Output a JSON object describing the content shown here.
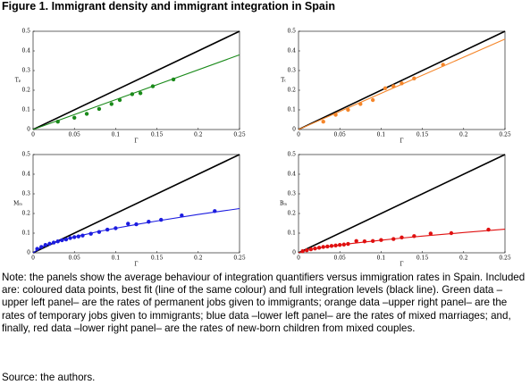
{
  "figure_title": "Figure 1. Immigrant density and immigrant integration in Spain",
  "note": "Note: the panels show the average behaviour of integration quantifiers versus immigration rates in Spain. Included are: coloured data points, best fit (line of the same colour) and full integration levels (black line). Green data –upper left panel– are the rates of permanent jobs given to immigrants; orange data –upper right panel– are the rates of temporary jobs given to immigrants; blue data –lower left panel– are the rates of mixed marriages; and, finally, red data –lower right panel– are the rates of new-born children from mixed couples.",
  "source": "Source: the authors.",
  "chart_data": [
    {
      "type": "scatter",
      "xlabel": "Γ",
      "ylabel": "Tₚ",
      "xlim": [
        0,
        0.25
      ],
      "ylim": [
        0,
        0.5
      ],
      "xticks": [
        0,
        0.05,
        0.1,
        0.15,
        0.2,
        0.25
      ],
      "yticks": [
        0,
        0.1,
        0.2,
        0.3,
        0.4,
        0.5
      ],
      "series": [
        {
          "color": "#000000",
          "mode": "line",
          "x": [
            0,
            0.25
          ],
          "values": [
            0,
            0.5
          ]
        },
        {
          "color": "#1a8a1a",
          "mode": "line",
          "x": [
            0,
            0.25
          ],
          "values": [
            0,
            0.38
          ]
        },
        {
          "color": "#1a8a1a",
          "mode": "markers",
          "x": [
            0.03,
            0.05,
            0.065,
            0.08,
            0.095,
            0.105,
            0.12,
            0.13,
            0.145,
            0.17
          ],
          "values": [
            0.04,
            0.06,
            0.08,
            0.105,
            0.13,
            0.15,
            0.18,
            0.185,
            0.22,
            0.255
          ]
        }
      ]
    },
    {
      "type": "scatter",
      "xlabel": "Γ",
      "ylabel": "Tₜ",
      "xlim": [
        0,
        0.25
      ],
      "ylim": [
        0,
        0.5
      ],
      "xticks": [
        0,
        0.05,
        0.1,
        0.15,
        0.2,
        0.25
      ],
      "yticks": [
        0,
        0.1,
        0.2,
        0.3,
        0.4,
        0.5
      ],
      "series": [
        {
          "color": "#000000",
          "mode": "line",
          "x": [
            0,
            0.25
          ],
          "values": [
            0,
            0.5
          ]
        },
        {
          "color": "#f5862a",
          "mode": "line",
          "x": [
            0,
            0.25
          ],
          "values": [
            0,
            0.46
          ]
        },
        {
          "color": "#f5862a",
          "mode": "markers",
          "x": [
            0.03,
            0.045,
            0.06,
            0.075,
            0.09,
            0.105,
            0.115,
            0.125,
            0.14,
            0.175
          ],
          "values": [
            0.04,
            0.075,
            0.1,
            0.13,
            0.15,
            0.21,
            0.22,
            0.235,
            0.26,
            0.33
          ]
        }
      ]
    },
    {
      "type": "scatter",
      "xlabel": "Γ",
      "ylabel": "Mₘ",
      "xlim": [
        0,
        0.25
      ],
      "ylim": [
        0,
        0.5
      ],
      "xticks": [
        0,
        0.05,
        0.1,
        0.15,
        0.2,
        0.25
      ],
      "yticks": [
        0,
        0.1,
        0.2,
        0.3,
        0.4,
        0.5
      ],
      "series": [
        {
          "color": "#000000",
          "mode": "line",
          "x": [
            0,
            0.25
          ],
          "values": [
            0,
            0.5
          ]
        },
        {
          "color": "#1c1ce0",
          "mode": "line",
          "x": [
            0,
            0.01,
            0.02,
            0.04,
            0.06,
            0.08,
            0.1,
            0.125,
            0.15,
            0.2,
            0.25
          ],
          "values": [
            0,
            0.029,
            0.045,
            0.07,
            0.09,
            0.109,
            0.125,
            0.144,
            0.162,
            0.195,
            0.225
          ]
        },
        {
          "color": "#1c1ce0",
          "mode": "markers",
          "x": [
            0.005,
            0.01,
            0.015,
            0.02,
            0.025,
            0.03,
            0.035,
            0.04,
            0.045,
            0.05,
            0.055,
            0.06,
            0.07,
            0.08,
            0.09,
            0.1,
            0.115,
            0.125,
            0.14,
            0.155,
            0.18,
            0.22
          ],
          "values": [
            0.02,
            0.03,
            0.04,
            0.046,
            0.052,
            0.058,
            0.064,
            0.068,
            0.075,
            0.08,
            0.083,
            0.088,
            0.097,
            0.106,
            0.118,
            0.125,
            0.148,
            0.145,
            0.158,
            0.168,
            0.19,
            0.212
          ]
        }
      ]
    },
    {
      "type": "scatter",
      "xlabel": "Γ",
      "ylabel": "Bₘ",
      "xlim": [
        0,
        0.25
      ],
      "ylim": [
        0,
        0.5
      ],
      "xticks": [
        0,
        0.05,
        0.1,
        0.15,
        0.2,
        0.25
      ],
      "yticks": [
        0,
        0.1,
        0.2,
        0.3,
        0.4,
        0.5
      ],
      "series": [
        {
          "color": "#000000",
          "mode": "line",
          "x": [
            0,
            0.25
          ],
          "values": [
            0,
            0.5
          ]
        },
        {
          "color": "#e01010",
          "mode": "line",
          "x": [
            0,
            0.01,
            0.02,
            0.04,
            0.06,
            0.08,
            0.1,
            0.125,
            0.15,
            0.2,
            0.25
          ],
          "values": [
            0,
            0.013,
            0.022,
            0.034,
            0.045,
            0.055,
            0.064,
            0.075,
            0.085,
            0.103,
            0.12
          ]
        },
        {
          "color": "#e01010",
          "mode": "markers",
          "x": [
            0.005,
            0.01,
            0.015,
            0.02,
            0.025,
            0.03,
            0.035,
            0.04,
            0.045,
            0.05,
            0.055,
            0.06,
            0.07,
            0.08,
            0.09,
            0.1,
            0.115,
            0.125,
            0.14,
            0.16,
            0.185,
            0.23
          ],
          "values": [
            0.008,
            0.013,
            0.018,
            0.022,
            0.026,
            0.03,
            0.032,
            0.035,
            0.037,
            0.04,
            0.042,
            0.045,
            0.06,
            0.058,
            0.06,
            0.065,
            0.07,
            0.078,
            0.085,
            0.098,
            0.1,
            0.118
          ]
        }
      ]
    }
  ]
}
